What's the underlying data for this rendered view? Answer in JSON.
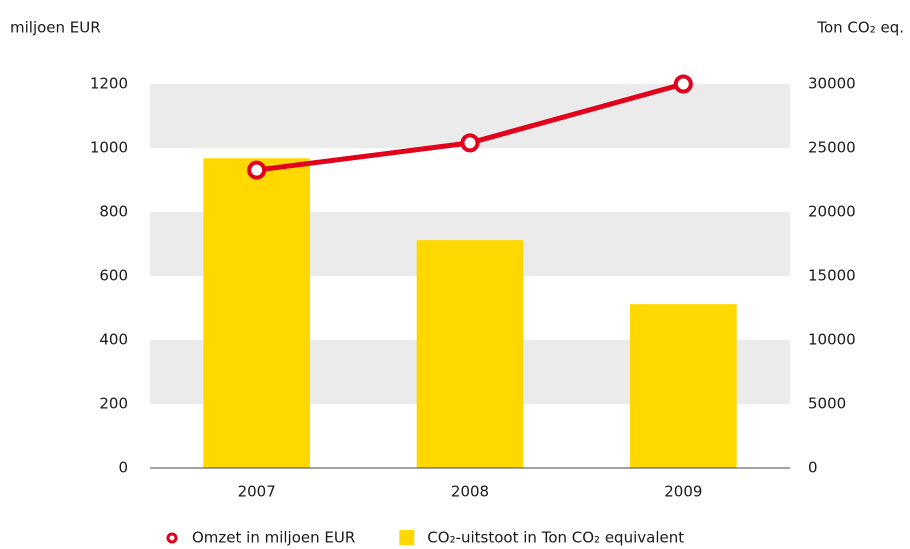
{
  "chart_data": {
    "type": "bar_line",
    "y_label": "miljoen EUR",
    "y2_label": "Ton CO₂ eq.",
    "categories": [
      "2007",
      "2008",
      "2009"
    ],
    "series": [
      {
        "name": "Omzet in miljoen EUR",
        "type": "line",
        "color": "#e2001a",
        "values": [
          931,
          1016,
          1200
        ]
      },
      {
        "name": "CO₂-uitstoot in Ton CO₂ equivalent",
        "type": "bar",
        "axis": "y2",
        "color": "#ffd800",
        "values": [
          24200,
          17800,
          12800
        ]
      }
    ],
    "ylim": [
      0,
      1200
    ],
    "yticks": [
      0,
      200,
      400,
      600,
      800,
      1000,
      1200
    ],
    "y2lim": [
      0,
      30000
    ],
    "y2ticks": [
      0,
      5000,
      10000,
      15000,
      20000,
      25000,
      30000
    ],
    "grid": true,
    "legend": "bottom"
  }
}
